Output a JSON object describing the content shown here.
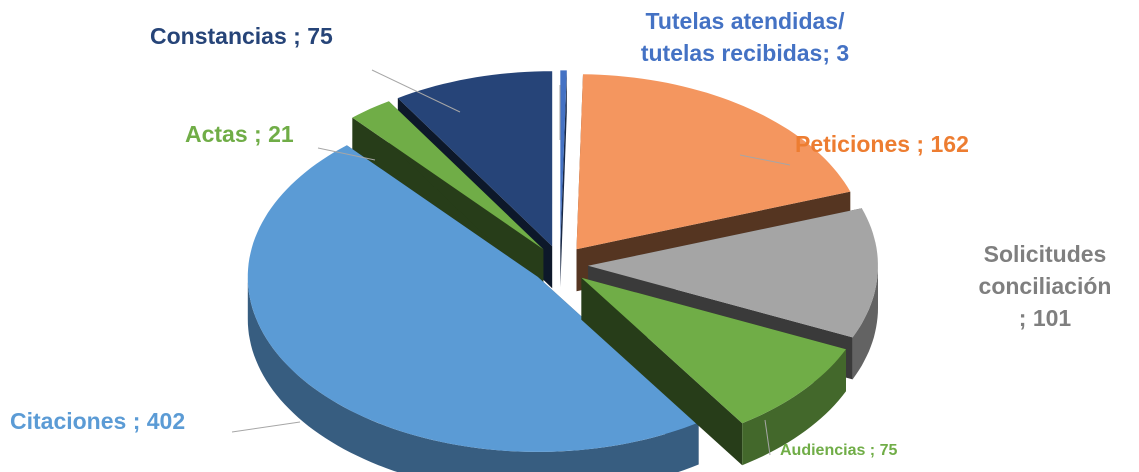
{
  "chart_data": {
    "type": "pie",
    "values": [
      3,
      162,
      101,
      75,
      402,
      21,
      75
    ],
    "value_labels": [
      "Tutelas atendidas/\ntutelas recibidas; 3",
      "Peticiones ; 162",
      "Solicitudes\nconciliación ; 101",
      "Audiencias  ; 75",
      "Citaciones ; 402",
      "Actas ; 21",
      "Constancias ; 75"
    ],
    "colors": [
      "#4472c4",
      "#f4965f",
      "#a5a5a5",
      "#70ad47",
      "#5b9bd5",
      "#70ad47",
      "#264478"
    ],
    "label_colors": [
      "#4472c4",
      "#ed7d31",
      "#7f7f7f",
      "#70ad47",
      "#5b9bd5",
      "#70ad47",
      "#264478"
    ]
  }
}
